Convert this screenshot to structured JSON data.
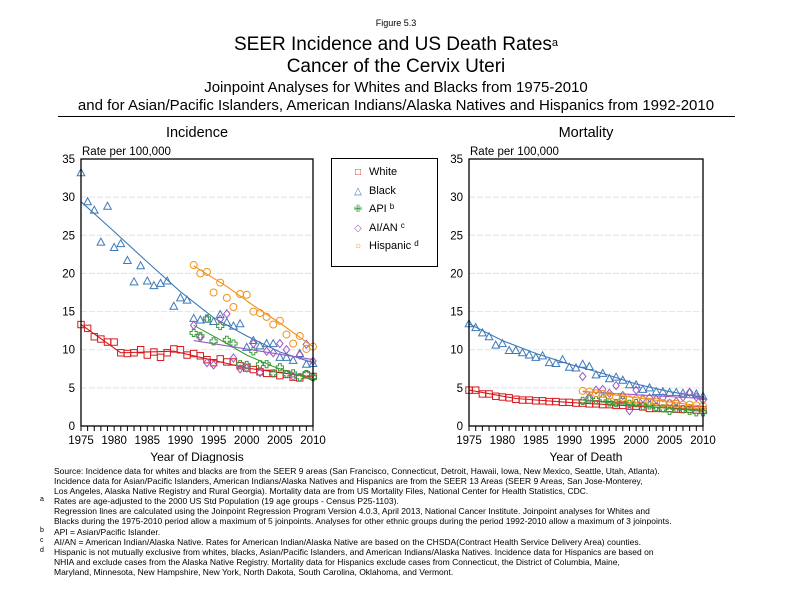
{
  "header": {
    "figure_label": "Figure 5.3",
    "title_line1": "SEER Incidence and US Death Rates",
    "title_sup": "a",
    "title_line2": "Cancer of the Cervix Uteri",
    "subtitle_line1": "Joinpoint Analyses for Whites and Blacks from 1975-2010",
    "subtitle_line2": "and for Asian/Pacific Islanders, American Indians/Alaska Natives and Hispanics from 1992-2010"
  },
  "legend": {
    "items": [
      {
        "label": "White",
        "sup": "",
        "symbol": "□",
        "color": "#d7191c"
      },
      {
        "label": "Black",
        "sup": "",
        "symbol": "△",
        "color": "#3d7ab8"
      },
      {
        "label": "API",
        "sup": "b",
        "symbol": "✙",
        "color": "#3a9b3a"
      },
      {
        "label": "AI/AN",
        "sup": "c",
        "symbol": "◇",
        "color": "#9b59c0"
      },
      {
        "label": "Hispanic",
        "sup": "d",
        "symbol": "○",
        "color": "#f0921e"
      }
    ]
  },
  "chart_data": [
    {
      "type": "scatter",
      "title": "Incidence",
      "xlabel": "Year of Diagnosis",
      "ylabel": "Rate per 100,000",
      "xlim": [
        1975,
        2010
      ],
      "ylim": [
        0,
        35
      ],
      "xticks": [
        1975,
        1980,
        1985,
        1990,
        1995,
        2000,
        2005,
        2010
      ],
      "yticks": [
        0,
        5,
        10,
        15,
        20,
        25,
        30,
        35
      ],
      "grid": true,
      "series": [
        {
          "name": "White",
          "marker": "square",
          "color": "#d7191c",
          "x": [
            1975,
            1976,
            1977,
            1978,
            1979,
            1980,
            1981,
            1982,
            1983,
            1984,
            1985,
            1986,
            1987,
            1988,
            1989,
            1990,
            1991,
            1992,
            1993,
            1994,
            1995,
            1996,
            1997,
            1998,
            1999,
            2000,
            2001,
            2002,
            2003,
            2004,
            2005,
            2006,
            2007,
            2008,
            2009,
            2010
          ],
          "y": [
            13.3,
            12.8,
            11.7,
            11.4,
            11.0,
            11.0,
            9.6,
            9.5,
            9.6,
            10.0,
            9.3,
            9.7,
            9.0,
            9.6,
            10.1,
            10.0,
            9.3,
            9.5,
            9.2,
            8.7,
            8.3,
            8.8,
            8.4,
            8.4,
            7.9,
            7.6,
            7.4,
            7.1,
            6.9,
            6.9,
            6.6,
            6.8,
            6.4,
            6.3,
            6.7,
            6.5
          ],
          "fit": [
            [
              1975,
              13.3
            ],
            [
              1981,
              9.6
            ],
            [
              1989,
              9.8
            ],
            [
              2000,
              7.6
            ],
            [
              2010,
              6.4
            ]
          ]
        },
        {
          "name": "Black",
          "marker": "triangle",
          "color": "#3d7ab8",
          "x": [
            1975,
            1976,
            1977,
            1978,
            1979,
            1980,
            1981,
            1982,
            1983,
            1984,
            1985,
            1986,
            1987,
            1988,
            1989,
            1990,
            1991,
            1992,
            1993,
            1994,
            1995,
            1996,
            1997,
            1998,
            1999,
            2000,
            2001,
            2002,
            2003,
            2004,
            2005,
            2006,
            2007,
            2008,
            2009,
            2010
          ],
          "y": [
            33.2,
            29.4,
            28.3,
            24.1,
            28.8,
            23.4,
            23.9,
            21.7,
            18.9,
            21.0,
            19.0,
            18.4,
            18.7,
            19.0,
            15.7,
            16.8,
            16.5,
            14.1,
            13.9,
            14.0,
            13.7,
            14.6,
            13.6,
            13.1,
            13.4,
            10.3,
            11.2,
            10.5,
            10.8,
            10.8,
            9.0,
            9.0,
            8.6,
            9.5,
            8.1,
            8.2
          ],
          "fit": [
            [
              1975,
              29.4
            ],
            [
              1980,
              25.5
            ],
            [
              1985,
              21.5
            ],
            [
              1990,
              17.6
            ],
            [
              1995,
              14.2
            ],
            [
              2000,
              11.8
            ],
            [
              2005,
              9.7
            ],
            [
              2010,
              8.3
            ]
          ]
        },
        {
          "name": "API",
          "marker": "plus",
          "color": "#3a9b3a",
          "x": [
            1992,
            1993,
            1994,
            1995,
            1996,
            1997,
            1998,
            1999,
            2000,
            2001,
            2002,
            2003,
            2004,
            2005,
            2006,
            2007,
            2008,
            2009,
            2010
          ],
          "y": [
            12.2,
            11.8,
            14.1,
            11.1,
            13.1,
            11.3,
            10.8,
            8.1,
            8.0,
            9.8,
            8.1,
            8.1,
            6.9,
            7.7,
            6.8,
            6.9,
            6.4,
            6.8,
            6.4
          ],
          "fit": [
            [
              1992,
              13.2
            ],
            [
              1996,
              11.3
            ],
            [
              2000,
              9.3
            ],
            [
              2004,
              7.8
            ],
            [
              2010,
              6.0
            ]
          ]
        },
        {
          "name": "AI/AN",
          "marker": "diamond",
          "color": "#9b59c0",
          "x": [
            1992,
            1993,
            1994,
            1995,
            1996,
            1997,
            1998,
            1999,
            2000,
            2001,
            2002,
            2003,
            2004,
            2005,
            2006,
            2007,
            2008,
            2009,
            2010
          ],
          "y": [
            13.2,
            11.6,
            8.3,
            8.0,
            14.0,
            14.7,
            8.9,
            7.5,
            7.6,
            10.8,
            7.0,
            9.8,
            9.6,
            10.8,
            10.0,
            6.5,
            9.3,
            10.7,
            8.5
          ],
          "fit": [
            [
              1992,
              11.2
            ],
            [
              2010,
              8.7
            ]
          ]
        },
        {
          "name": "Hispanic",
          "marker": "circle",
          "color": "#f0921e",
          "x": [
            1992,
            1993,
            1994,
            1995,
            1996,
            1997,
            1998,
            1999,
            2000,
            2001,
            2002,
            2003,
            2004,
            2005,
            2006,
            2007,
            2008,
            2009,
            2010
          ],
          "y": [
            21.1,
            20.0,
            20.2,
            17.5,
            18.8,
            16.8,
            15.6,
            17.3,
            17.2,
            15.0,
            14.8,
            14.3,
            13.3,
            13.8,
            12.0,
            10.8,
            11.8,
            10.1,
            10.4
          ],
          "fit": [
            [
              1992,
              21.0
            ],
            [
              1997,
              18.3
            ],
            [
              2001,
              15.8
            ],
            [
              2005,
              13.5
            ],
            [
              2010,
              10.4
            ]
          ]
        }
      ]
    },
    {
      "type": "scatter",
      "title": "Mortality",
      "xlabel": "Year of Death",
      "ylabel": "Rate per 100,000",
      "xlim": [
        1975,
        2010
      ],
      "ylim": [
        0,
        35
      ],
      "xticks": [
        1975,
        1980,
        1985,
        1990,
        1995,
        2000,
        2005,
        2010
      ],
      "yticks": [
        0,
        5,
        10,
        15,
        20,
        25,
        30,
        35
      ],
      "grid": true,
      "series": [
        {
          "name": "White",
          "marker": "square",
          "color": "#d7191c",
          "x": [
            1975,
            1976,
            1977,
            1978,
            1979,
            1980,
            1981,
            1982,
            1983,
            1984,
            1985,
            1986,
            1987,
            1988,
            1989,
            1990,
            1991,
            1992,
            1993,
            1994,
            1995,
            1996,
            1997,
            1998,
            1999,
            2000,
            2001,
            2002,
            2003,
            2004,
            2005,
            2006,
            2007,
            2008,
            2009,
            2010
          ],
          "y": [
            4.7,
            4.7,
            4.2,
            4.2,
            3.9,
            3.8,
            3.7,
            3.5,
            3.4,
            3.4,
            3.3,
            3.3,
            3.2,
            3.2,
            3.1,
            3.1,
            3.0,
            3.0,
            2.9,
            2.9,
            2.8,
            2.8,
            2.7,
            2.7,
            2.6,
            2.6,
            2.5,
            2.3,
            2.3,
            2.3,
            2.3,
            2.2,
            2.2,
            2.2,
            2.1,
            2.1
          ],
          "fit": [
            [
              1975,
              4.7
            ],
            [
              1982,
              3.6
            ],
            [
              1990,
              3.1
            ],
            [
              2000,
              2.6
            ],
            [
              2010,
              2.1
            ]
          ]
        },
        {
          "name": "Black",
          "marker": "triangle",
          "color": "#3d7ab8",
          "x": [
            1975,
            1976,
            1977,
            1978,
            1979,
            1980,
            1981,
            1982,
            1983,
            1984,
            1985,
            1986,
            1987,
            1988,
            1989,
            1990,
            1991,
            1992,
            1993,
            1994,
            1995,
            1996,
            1997,
            1998,
            1999,
            2000,
            2001,
            2002,
            2003,
            2004,
            2005,
            2006,
            2007,
            2008,
            2009,
            2010
          ],
          "y": [
            13.4,
            12.9,
            12.2,
            11.7,
            10.6,
            10.8,
            9.9,
            9.9,
            9.6,
            9.3,
            9.0,
            9.2,
            8.3,
            8.2,
            8.7,
            7.7,
            7.6,
            8.1,
            7.8,
            6.7,
            6.9,
            6.2,
            6.4,
            6.0,
            5.4,
            5.4,
            4.8,
            5.0,
            4.5,
            4.5,
            4.4,
            4.4,
            4.3,
            4.4,
            4.2,
            3.9
          ],
          "fit": [
            [
              1975,
              13.4
            ],
            [
              1980,
              11.2
            ],
            [
              1985,
              9.5
            ],
            [
              1990,
              8.1
            ],
            [
              1995,
              6.9
            ],
            [
              2000,
              5.5
            ],
            [
              2005,
              4.5
            ],
            [
              2010,
              3.8
            ]
          ]
        },
        {
          "name": "API",
          "marker": "plus",
          "color": "#3a9b3a",
          "x": [
            1992,
            1993,
            1994,
            1995,
            1996,
            1997,
            1998,
            1999,
            2000,
            2001,
            2002,
            2003,
            2004,
            2005,
            2006,
            2007,
            2008,
            2009,
            2010
          ],
          "y": [
            3.3,
            3.5,
            3.4,
            3.6,
            3.1,
            3.0,
            3.4,
            2.9,
            3.0,
            2.6,
            2.7,
            2.5,
            2.3,
            2.0,
            2.3,
            2.2,
            2.0,
            1.8,
            1.8
          ],
          "fit": [
            [
              1992,
              3.4
            ],
            [
              2010,
              1.9
            ]
          ]
        },
        {
          "name": "AI/AN",
          "marker": "diamond",
          "color": "#9b59c0",
          "x": [
            1992,
            1993,
            1994,
            1995,
            1996,
            1997,
            1998,
            1999,
            2000,
            2001,
            2002,
            2003,
            2004,
            2005,
            2006,
            2007,
            2008,
            2009,
            2010
          ],
          "y": [
            6.5,
            3.8,
            4.7,
            4.8,
            4.3,
            5.3,
            4.0,
            2.0,
            4.7,
            3.6,
            3.7,
            3.5,
            3.7,
            3.0,
            3.2,
            3.8,
            4.4,
            3.8,
            3.4
          ],
          "fit": [
            [
              1992,
              4.5
            ],
            [
              2010,
              3.6
            ]
          ]
        },
        {
          "name": "Hispanic",
          "marker": "circle",
          "color": "#f0921e",
          "x": [
            1992,
            1993,
            1994,
            1995,
            1996,
            1997,
            1998,
            1999,
            2000,
            2001,
            2002,
            2003,
            2004,
            2005,
            2006,
            2007,
            2008,
            2009,
            2010
          ],
          "y": [
            4.6,
            4.5,
            4.3,
            4.2,
            4.0,
            3.8,
            3.7,
            3.5,
            3.5,
            3.4,
            3.2,
            3.2,
            3.0,
            3.0,
            2.9,
            2.8,
            2.8,
            2.7,
            2.6
          ],
          "fit": [
            [
              1992,
              4.6
            ],
            [
              2010,
              2.6
            ]
          ]
        }
      ]
    }
  ],
  "footnotes": [
    {
      "mark": "",
      "lines": [
        "Source:  Incidence data for whites and blacks are from the SEER 9 areas (San Francisco, Connecticut, Detroit, Hawaii, Iowa, New Mexico, Seattle, Utah, Atlanta).",
        "Incidence data for Asian/Pacific Islanders, American Indians/Alaska Natives and Hispanics are from the SEER 13 Areas (SEER 9 Areas, San Jose-Monterey,",
        "Los Angeles, Alaska Native Registry and Rural Georgia).  Mortality data are from US Mortality Files, National Center for Health Statistics, CDC."
      ]
    },
    {
      "mark": "a",
      "lines": [
        "Rates are age-adjusted to the 2000 US Std Population (19 age groups - Census P25-1103).",
        "Regression lines are calculated using the Joinpoint Regression Program Version 4.0.3, April 2013, National Cancer Institute.  Joinpoint analyses for Whites and",
        "Blacks during the 1975-2010 period allow a maximum of 5 joinpoints. Analyses for other ethnic groups during the period 1992-2010 allow a maximum of 3 joinpoints."
      ]
    },
    {
      "mark": "b",
      "lines": [
        "API = Asian/Pacific Islander."
      ]
    },
    {
      "mark": "c",
      "lines": [
        "AI/AN = American Indian/Alaska Native.  Rates for American Indian/Alaska Native are based on the CHSDA(Contract Health Service Delivery Area) counties."
      ]
    },
    {
      "mark": "d",
      "lines": [
        "Hispanic is not mutually exclusive from whites, blacks, Asian/Pacific Islanders, and American Indians/Alaska Natives.  Incidence data for Hispanics are based on",
        "NHIA and exclude cases from the Alaska Native Registry.  Mortality data for Hispanics exclude cases from Connecticut, the District of Columbia, Maine,",
        "Maryland, Minnesota, New Hampshire, New York, North Dakota, South Carolina, Oklahoma, and Vermont."
      ]
    }
  ]
}
